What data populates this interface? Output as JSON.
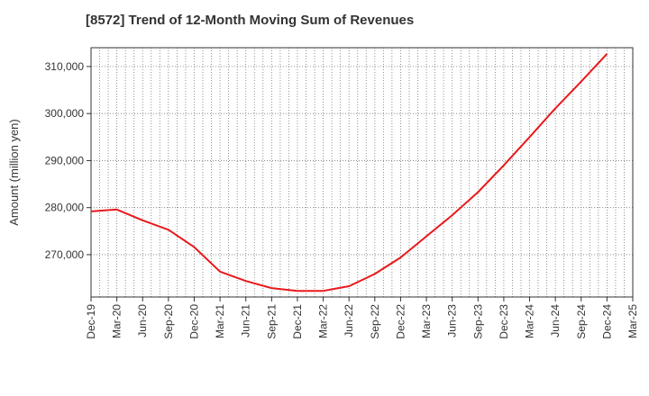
{
  "chart_data": {
    "type": "line",
    "title": "[8572]  Trend of 12-Month Moving Sum of Revenues",
    "ylabel": "Amount (million yen)",
    "xlabel": "",
    "x_tick_labels": [
      "Dec-19",
      "Mar-20",
      "Jun-20",
      "Sep-20",
      "Dec-20",
      "Mar-21",
      "Jun-21",
      "Sep-21",
      "Dec-21",
      "Mar-22",
      "Jun-22",
      "Sep-22",
      "Dec-22",
      "Mar-23",
      "Jun-23",
      "Sep-23",
      "Dec-23",
      "Mar-24",
      "Jun-24",
      "Sep-24",
      "Dec-24",
      "Mar-25"
    ],
    "y_ticks": [
      270000,
      280000,
      290000,
      300000,
      310000
    ],
    "y_tick_labels": [
      "270,000",
      "280,000",
      "290,000",
      "300,000",
      "310,000"
    ],
    "ylim": [
      261000,
      314000
    ],
    "grid": true,
    "series": [
      {
        "color": "#e8191c",
        "x": [
          "Dec-19",
          "Mar-20",
          "Jun-20",
          "Sep-20",
          "Dec-20",
          "Mar-21",
          "Jun-21",
          "Sep-21",
          "Dec-21",
          "Mar-22",
          "Jun-22",
          "Sep-22",
          "Dec-22",
          "Mar-23",
          "Jun-23",
          "Sep-23",
          "Dec-23",
          "Mar-24",
          "Jun-24",
          "Sep-24",
          "Dec-24"
        ],
        "values": [
          279200,
          279600,
          277300,
          275300,
          271600,
          266400,
          264400,
          262900,
          262300,
          262300,
          263300,
          265900,
          269400,
          273900,
          278400,
          283300,
          289000,
          295000,
          301100,
          306800,
          312700
        ]
      }
    ]
  }
}
